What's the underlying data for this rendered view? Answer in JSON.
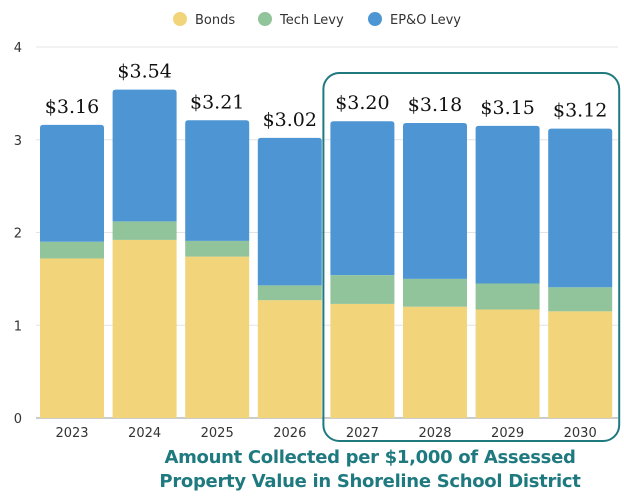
{
  "chart_data": {
    "type": "bar",
    "stacked": true,
    "categories": [
      "2023",
      "2024",
      "2025",
      "2026",
      "2027",
      "2028",
      "2029",
      "2030"
    ],
    "series": [
      {
        "name": "Bonds",
        "color": "#f2d47a",
        "values": [
          1.72,
          1.92,
          1.74,
          1.27,
          1.23,
          1.2,
          1.17,
          1.15
        ]
      },
      {
        "name": "Tech Levy",
        "color": "#92c49b",
        "values": [
          0.18,
          0.2,
          0.17,
          0.16,
          0.31,
          0.3,
          0.28,
          0.26
        ]
      },
      {
        "name": "EP&O Levy",
        "color": "#4d96d3",
        "values": [
          1.26,
          1.42,
          1.3,
          1.59,
          1.66,
          1.68,
          1.7,
          1.71
        ]
      }
    ],
    "totals": [
      "$3.16",
      "$3.54",
      "$3.21",
      "$3.02",
      "$3.20",
      "$3.18",
      "$3.15",
      "$3.12"
    ],
    "ylim": [
      0,
      4
    ],
    "yticks": [
      "0",
      "1",
      "2",
      "3",
      "4"
    ],
    "grid": true,
    "legend_position": "top-center",
    "highlight_box": {
      "from": "2027",
      "to": "2030",
      "color": "#1f7a80"
    },
    "title_lines": [
      "Amount Collected per $1,000 of Assessed",
      "Property Value in Shoreline School District"
    ]
  }
}
